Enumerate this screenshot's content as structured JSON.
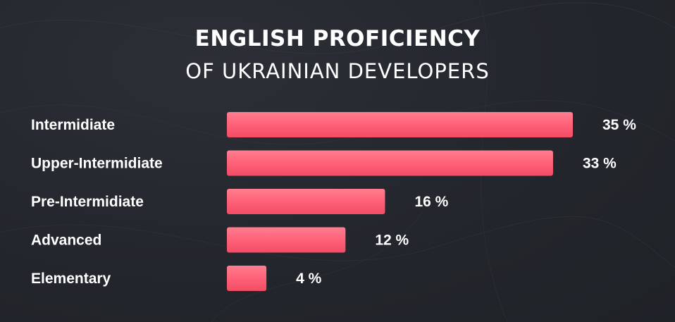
{
  "colors": {
    "background": "#23262c",
    "bar": "#ff6178",
    "text": "#ffffff"
  },
  "title": {
    "line1": "ENGLISH PROFICIENCY",
    "line2": "OF UKRAINIAN DEVELOPERS"
  },
  "chart_data": {
    "type": "bar",
    "orientation": "horizontal",
    "title": "ENGLISH PROFICIENCY OF UKRAINIAN DEVELOPERS",
    "categories": [
      "Intermidiate",
      "Upper-Intermidiate",
      "Pre-Intermidiate",
      "Advanced",
      "Elementary"
    ],
    "values": [
      35,
      33,
      16,
      12,
      4
    ],
    "value_labels": [
      "35 %",
      "33 %",
      "16 %",
      "12 %",
      "4 %"
    ],
    "unit": "%",
    "xlim": [
      0,
      35
    ],
    "grid": false,
    "legend": "none"
  }
}
